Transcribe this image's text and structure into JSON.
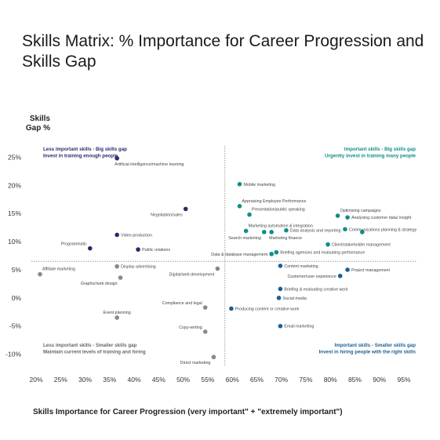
{
  "title": "Skills Matrix: % Importance for Career Progression and Skills Gap",
  "chart_data": {
    "type": "scatter",
    "ylabel_line1": "Skills",
    "ylabel_line2": "Gap %",
    "xlabel": "Skills Importance for Career Progression (very important\" + \"extremely important\")",
    "xlim": [
      20,
      95
    ],
    "ylim": [
      -12,
      27
    ],
    "x_ticks": [
      "20%",
      "25%",
      "30%",
      "35%",
      "40%",
      "45%",
      "50%",
      "55%",
      "60%",
      "65%",
      "70%",
      "75%",
      "80%",
      "85%",
      "90%",
      "95%"
    ],
    "x_tick_values": [
      20,
      25,
      30,
      35,
      40,
      45,
      50,
      55,
      60,
      65,
      70,
      75,
      80,
      85,
      90,
      95
    ],
    "y_ticks": [
      "25%",
      "20%",
      "15%",
      "10%",
      "5%",
      "0%",
      "-5%",
      "-10%"
    ],
    "y_tick_values": [
      25,
      20,
      15,
      10,
      5,
      0,
      -5,
      -10
    ],
    "divider_x": 58.5,
    "divider_y": 6.5,
    "colors": {
      "purple": "#2b2a6b",
      "teal": "#0f8f88",
      "grey": "#888888",
      "blue": "#1d5f94"
    },
    "quadrants": [
      {
        "title": "Less important skills - Big skills gap",
        "subtitle": "Invest in training enough people",
        "position": "top-left",
        "color": "#2b2a6b"
      },
      {
        "title": "Important skills - Big skills gap",
        "subtitle": "Urgently invest in training many people",
        "position": "top-right",
        "color": "#0f8f88"
      },
      {
        "title": "Less important skills - Smaller skills gap",
        "subtitle": "Maintain current levels of training and hiring",
        "position": "bottom-left",
        "color": "#666666"
      },
      {
        "title": "Important skills - Smaller skills gap",
        "subtitle": "Invest in hiring people with the right skills",
        "position": "bottom-right",
        "color": "#1d5f94"
      }
    ],
    "points": [
      {
        "label": "Artificial intelligence/machine learning",
        "x": 36.5,
        "y": 24.8,
        "group": "purple",
        "label_pos": "below"
      },
      {
        "label": "Negotiation/sales",
        "x": 50.5,
        "y": 15.8,
        "group": "purple",
        "label_pos": "below-left"
      },
      {
        "label": "Video production",
        "x": 36.5,
        "y": 11.2,
        "group": "purple",
        "label_pos": "right"
      },
      {
        "label": "Programmatic",
        "x": 31.0,
        "y": 8.8,
        "group": "purple",
        "label_pos": "above-left"
      },
      {
        "label": "Public relations",
        "x": 40.8,
        "y": 8.6,
        "group": "purple",
        "label_pos": "right"
      },
      {
        "label": "Mobile marketing",
        "x": 61.5,
        "y": 20.2,
        "group": "teal",
        "label_pos": "right"
      },
      {
        "label": "Appraising Employee Performance",
        "x": 61.5,
        "y": 16.3,
        "group": "teal",
        "label_pos": "above-right"
      },
      {
        "label": "Presentation/public speaking",
        "x": 63.5,
        "y": 14.8,
        "group": "teal",
        "label_pos": "above-right"
      },
      {
        "label": "Marketing automation & integration",
        "x": 62.8,
        "y": 11.9,
        "group": "teal",
        "label_pos": "above-right"
      },
      {
        "label": "Search marketing",
        "x": 66.5,
        "y": 11.7,
        "group": "teal",
        "label_pos": "below-left"
      },
      {
        "label": "Marketing finance",
        "x": 68.0,
        "y": 11.7,
        "group": "teal",
        "label_pos": "below"
      },
      {
        "label": "Data analysis and reporting",
        "x": 71.0,
        "y": 12.0,
        "group": "teal",
        "label_pos": "right"
      },
      {
        "label": "Optimising campaigns",
        "x": 81.5,
        "y": 14.6,
        "group": "teal",
        "label_pos": "above-right"
      },
      {
        "label": "Analysing customer data/ insight",
        "x": 83.5,
        "y": 14.3,
        "group": "teal",
        "label_pos": "right"
      },
      {
        "label": "Communications planning & strategy",
        "x": 83.0,
        "y": 12.2,
        "group": "teal",
        "label_pos": "right"
      },
      {
        "label": "",
        "x": 86.5,
        "y": 11.7,
        "group": "teal",
        "label_pos": "none"
      },
      {
        "label": "Client/stakeholder management",
        "x": 79.5,
        "y": 9.5,
        "group": "teal",
        "label_pos": "right"
      },
      {
        "label": "Data & database management",
        "x": 68.0,
        "y": 7.8,
        "group": "teal",
        "label_pos": "left"
      },
      {
        "label": "Briefing agencies and evaluating performance",
        "x": 69.0,
        "y": 8.1,
        "group": "teal",
        "label_pos": "right"
      },
      {
        "label": "Affiliate marketing",
        "x": 20.8,
        "y": 4.2,
        "group": "grey",
        "label_pos": "above-right"
      },
      {
        "label": "Display advertising",
        "x": 36.5,
        "y": 5.6,
        "group": "grey",
        "label_pos": "right"
      },
      {
        "label": "Graphic/web design",
        "x": 37.2,
        "y": 3.6,
        "group": "grey",
        "label_pos": "below-left"
      },
      {
        "label": "Digital/web development",
        "x": 57.0,
        "y": 5.2,
        "group": "grey",
        "label_pos": "below-left"
      },
      {
        "label": "Compliance and legal",
        "x": 54.5,
        "y": -1.7,
        "group": "grey",
        "label_pos": "above-left"
      },
      {
        "label": "Event planning",
        "x": 36.5,
        "y": -3.5,
        "group": "grey",
        "label_pos": "above"
      },
      {
        "label": "Copy-writing",
        "x": 54.5,
        "y": -6.0,
        "group": "grey",
        "label_pos": "above-left"
      },
      {
        "label": "Direct marketing",
        "x": 56.2,
        "y": -10.5,
        "group": "grey",
        "label_pos": "below-left"
      },
      {
        "label": "Content marketing",
        "x": 69.8,
        "y": 5.7,
        "group": "blue",
        "label_pos": "right"
      },
      {
        "label": "Customer/user experience",
        "x": 82.0,
        "y": 3.9,
        "group": "blue",
        "label_pos": "left"
      },
      {
        "label": "Project management",
        "x": 83.5,
        "y": 5.0,
        "group": "blue",
        "label_pos": "right"
      },
      {
        "label": "Briefing & evaluating creative work",
        "x": 69.8,
        "y": 1.6,
        "group": "blue",
        "label_pos": "right"
      },
      {
        "label": "Social media",
        "x": 69.5,
        "y": 0.0,
        "group": "blue",
        "label_pos": "right"
      },
      {
        "label": "Producing content or creative work",
        "x": 59.8,
        "y": -1.9,
        "group": "blue",
        "label_pos": "right"
      },
      {
        "label": "Email marketing",
        "x": 69.8,
        "y": -5.0,
        "group": "blue",
        "label_pos": "right"
      }
    ]
  }
}
